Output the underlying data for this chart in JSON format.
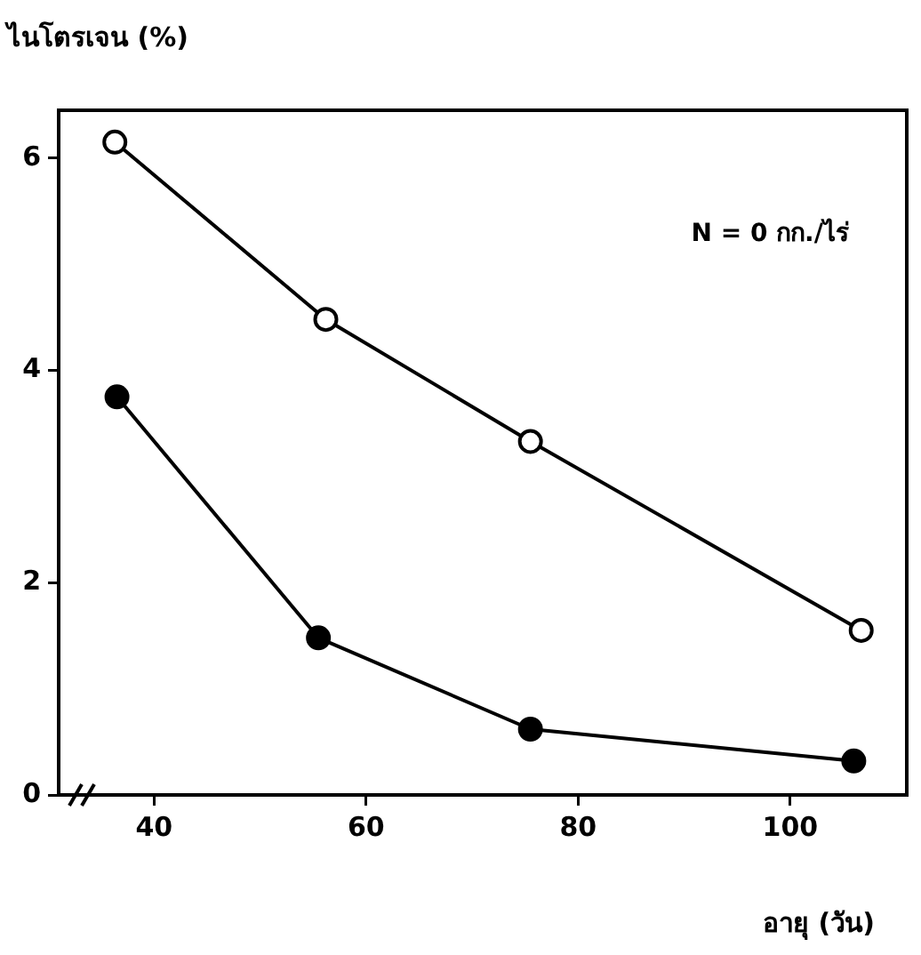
{
  "chart_data": {
    "type": "line",
    "ylabel": "ไนโตรเจน (%)",
    "xlabel": "อายุ (วัน)",
    "annotations": [
      "N = 0 กก./ไร่"
    ],
    "xlim": [
      31,
      111
    ],
    "xticks": [
      40,
      60,
      80,
      100
    ],
    "ylim": [
      0,
      6.45
    ],
    "yticks": [
      0,
      2,
      4,
      6
    ],
    "grid": false,
    "legend": false,
    "marker": "circle",
    "line_style": "solid",
    "series": [
      {
        "color": "#000000",
        "x": [
          36.3,
          56.2,
          75.5,
          106.7
        ],
        "values": [
          6.15,
          4.48,
          3.33,
          1.55
        ]
      },
      {
        "color": "#000000",
        "x": [
          36.5,
          55.5,
          75.5,
          106
        ],
        "values": [
          3.75,
          1.48,
          0.62,
          0.32
        ]
      }
    ]
  }
}
